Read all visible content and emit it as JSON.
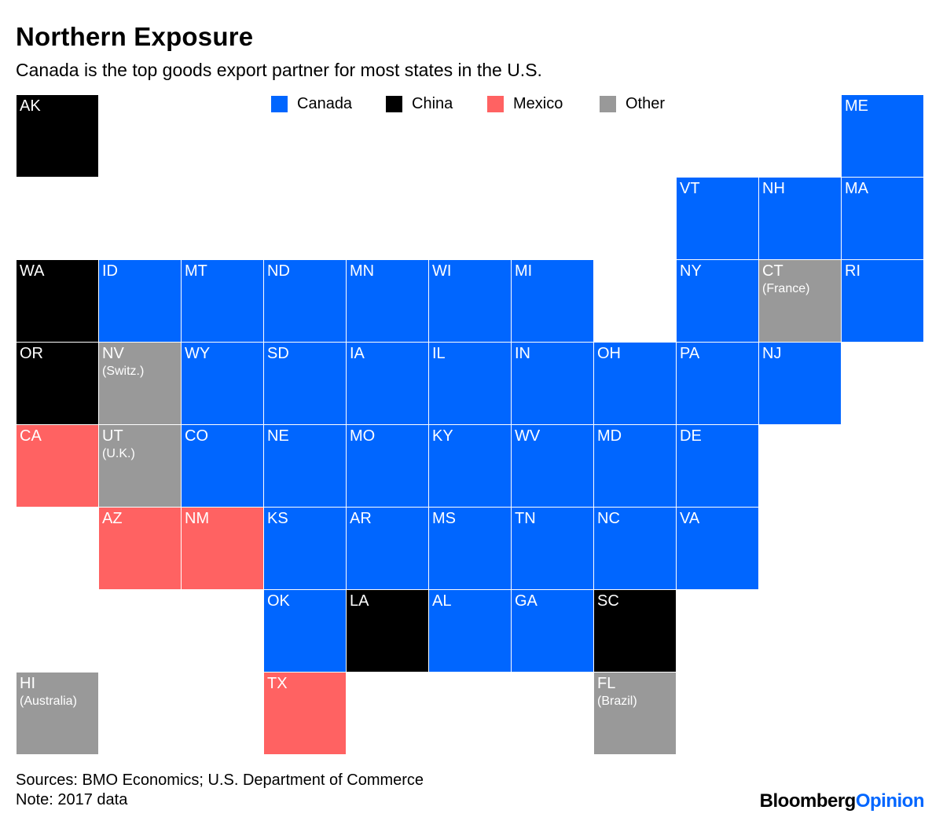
{
  "title": "Northern Exposure",
  "subtitle": "Canada is the top goods export partner for most states in the U.S.",
  "colors": {
    "Canada": "#0066ff",
    "China": "#000000",
    "Mexico": "#ff6262",
    "Other": "#999999"
  },
  "legend": [
    {
      "label": "Canada",
      "category": "Canada"
    },
    {
      "label": "China",
      "category": "China"
    },
    {
      "label": "Mexico",
      "category": "Mexico"
    },
    {
      "label": "Other",
      "category": "Other"
    }
  ],
  "states": [
    {
      "abbr": "AK",
      "partner": "China",
      "col": 0,
      "row": 0
    },
    {
      "abbr": "ME",
      "partner": "Canada",
      "col": 10,
      "row": 0
    },
    {
      "abbr": "VT",
      "partner": "Canada",
      "col": 8,
      "row": 1
    },
    {
      "abbr": "NH",
      "partner": "Canada",
      "col": 9,
      "row": 1
    },
    {
      "abbr": "MA",
      "partner": "Canada",
      "col": 10,
      "row": 1
    },
    {
      "abbr": "WA",
      "partner": "China",
      "col": 0,
      "row": 2
    },
    {
      "abbr": "ID",
      "partner": "Canada",
      "col": 1,
      "row": 2
    },
    {
      "abbr": "MT",
      "partner": "Canada",
      "col": 2,
      "row": 2
    },
    {
      "abbr": "ND",
      "partner": "Canada",
      "col": 3,
      "row": 2
    },
    {
      "abbr": "MN",
      "partner": "Canada",
      "col": 4,
      "row": 2
    },
    {
      "abbr": "WI",
      "partner": "Canada",
      "col": 5,
      "row": 2
    },
    {
      "abbr": "MI",
      "partner": "Canada",
      "col": 6,
      "row": 2
    },
    {
      "abbr": "NY",
      "partner": "Canada",
      "col": 8,
      "row": 2
    },
    {
      "abbr": "CT",
      "partner": "Other",
      "note": "(France)",
      "col": 9,
      "row": 2
    },
    {
      "abbr": "RI",
      "partner": "Canada",
      "col": 10,
      "row": 2
    },
    {
      "abbr": "OR",
      "partner": "China",
      "col": 0,
      "row": 3
    },
    {
      "abbr": "NV",
      "partner": "Other",
      "note": "(Switz.)",
      "col": 1,
      "row": 3
    },
    {
      "abbr": "WY",
      "partner": "Canada",
      "col": 2,
      "row": 3
    },
    {
      "abbr": "SD",
      "partner": "Canada",
      "col": 3,
      "row": 3
    },
    {
      "abbr": "IA",
      "partner": "Canada",
      "col": 4,
      "row": 3
    },
    {
      "abbr": "IL",
      "partner": "Canada",
      "col": 5,
      "row": 3
    },
    {
      "abbr": "IN",
      "partner": "Canada",
      "col": 6,
      "row": 3
    },
    {
      "abbr": "OH",
      "partner": "Canada",
      "col": 7,
      "row": 3
    },
    {
      "abbr": "PA",
      "partner": "Canada",
      "col": 8,
      "row": 3
    },
    {
      "abbr": "NJ",
      "partner": "Canada",
      "col": 9,
      "row": 3
    },
    {
      "abbr": "CA",
      "partner": "Mexico",
      "col": 0,
      "row": 4
    },
    {
      "abbr": "UT",
      "partner": "Other",
      "note": "(U.K.)",
      "col": 1,
      "row": 4
    },
    {
      "abbr": "CO",
      "partner": "Canada",
      "col": 2,
      "row": 4
    },
    {
      "abbr": "NE",
      "partner": "Canada",
      "col": 3,
      "row": 4
    },
    {
      "abbr": "MO",
      "partner": "Canada",
      "col": 4,
      "row": 4
    },
    {
      "abbr": "KY",
      "partner": "Canada",
      "col": 5,
      "row": 4
    },
    {
      "abbr": "WV",
      "partner": "Canada",
      "col": 6,
      "row": 4
    },
    {
      "abbr": "MD",
      "partner": "Canada",
      "col": 7,
      "row": 4
    },
    {
      "abbr": "DE",
      "partner": "Canada",
      "col": 8,
      "row": 4
    },
    {
      "abbr": "AZ",
      "partner": "Mexico",
      "col": 1,
      "row": 5
    },
    {
      "abbr": "NM",
      "partner": "Mexico",
      "col": 2,
      "row": 5
    },
    {
      "abbr": "KS",
      "partner": "Canada",
      "col": 3,
      "row": 5
    },
    {
      "abbr": "AR",
      "partner": "Canada",
      "col": 4,
      "row": 5
    },
    {
      "abbr": "MS",
      "partner": "Canada",
      "col": 5,
      "row": 5
    },
    {
      "abbr": "TN",
      "partner": "Canada",
      "col": 6,
      "row": 5
    },
    {
      "abbr": "NC",
      "partner": "Canada",
      "col": 7,
      "row": 5
    },
    {
      "abbr": "VA",
      "partner": "Canada",
      "col": 8,
      "row": 5
    },
    {
      "abbr": "OK",
      "partner": "Canada",
      "col": 3,
      "row": 6
    },
    {
      "abbr": "LA",
      "partner": "China",
      "col": 4,
      "row": 6
    },
    {
      "abbr": "AL",
      "partner": "Canada",
      "col": 5,
      "row": 6
    },
    {
      "abbr": "GA",
      "partner": "Canada",
      "col": 6,
      "row": 6
    },
    {
      "abbr": "SC",
      "partner": "China",
      "col": 7,
      "row": 6
    },
    {
      "abbr": "HI",
      "partner": "Other",
      "note": "(Australia)",
      "col": 0,
      "row": 7
    },
    {
      "abbr": "TX",
      "partner": "Mexico",
      "col": 3,
      "row": 7
    },
    {
      "abbr": "FL",
      "partner": "Other",
      "note": "(Brazil)",
      "col": 7,
      "row": 7
    }
  ],
  "footer": {
    "sources": "Sources: BMO Economics; U.S. Department of Commerce",
    "note": "Note: 2017 data"
  },
  "brand": {
    "name": "Bloomberg",
    "suffix": "Opinion"
  }
}
